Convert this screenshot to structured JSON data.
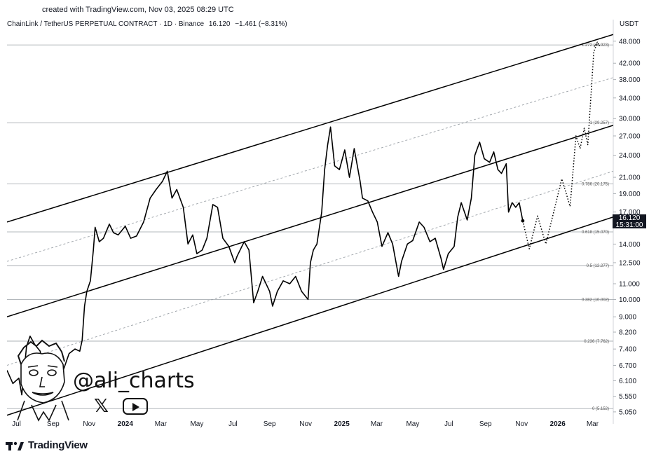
{
  "header": {
    "created": "created with TradingView.com, Nov 03, 2025 08:29 UTC",
    "symbol": "ChainLink / TetherUS PERPETUAL CONTRACT · 1D · Binance",
    "last": "16.120",
    "change": "−1.461 (−8.31%)",
    "currency": "USDT"
  },
  "price_label": {
    "price": "16.120",
    "countdown": "15:31:00"
  },
  "watermark": {
    "handle": "@ali_charts",
    "icons": [
      "x-icon",
      "youtube-icon",
      "avatar-illustration"
    ]
  },
  "brand": {
    "name": "TradingView",
    "icon": "tradingview-logo-icon"
  },
  "chart_data": {
    "type": "line",
    "scale": "log",
    "title": "",
    "y_axis": {
      "ticks": [
        "48.000",
        "42.000",
        "38.000",
        "34.000",
        "30.000",
        "27.000",
        "24.000",
        "21.000",
        "19.000",
        "17.000",
        "14.000",
        "12.500",
        "11.000",
        "10.000",
        "9.000",
        "8.200",
        "7.400",
        "6.700",
        "6.100",
        "5.550",
        "5.050"
      ],
      "tick_values": [
        48,
        42,
        38,
        34,
        30,
        27,
        24,
        21,
        19,
        17,
        14,
        12.5,
        11,
        10,
        9,
        8.2,
        7.4,
        6.7,
        6.1,
        5.55,
        5.05
      ],
      "ylim": [
        4.9,
        52
      ]
    },
    "x_axis": {
      "ticks": [
        "Jul",
        "Sep",
        "Nov",
        "2024",
        "Mar",
        "May",
        "Jul",
        "Sep",
        "Nov",
        "2025",
        "Mar",
        "May",
        "Jul",
        "Sep",
        "Nov",
        "2026",
        "Mar"
      ],
      "bold": [
        false,
        false,
        false,
        true,
        false,
        false,
        false,
        false,
        false,
        true,
        false,
        false,
        false,
        false,
        false,
        true,
        false
      ],
      "tick_dates": [
        "2023-07-01",
        "2023-09-01",
        "2023-11-01",
        "2024-01-01",
        "2024-03-01",
        "2024-05-01",
        "2024-07-01",
        "2024-09-01",
        "2024-11-01",
        "2025-01-01",
        "2025-03-01",
        "2025-05-01",
        "2025-07-01",
        "2025-09-01",
        "2025-11-01",
        "2026-01-01",
        "2026-03-01"
      ],
      "xlim": [
        "2023-06-15",
        "2026-04-05"
      ]
    },
    "fib_levels": [
      {
        "label": "1.272 (46.923)",
        "value": 46.923
      },
      {
        "label": "1 (29.257)",
        "value": 29.257
      },
      {
        "label": "0.786 (20.175)",
        "value": 20.175
      },
      {
        "label": "0.618 (15.070)",
        "value": 15.07
      },
      {
        "label": "0.5 (12.277)",
        "value": 12.277
      },
      {
        "label": "0.382 (10.002)",
        "value": 10.002
      },
      {
        "label": "0.236 (7.762)",
        "value": 7.762
      },
      {
        "label": "0 (5.152)",
        "value": 5.152
      }
    ],
    "channel_lines": [
      {
        "role": "upper",
        "points": [
          [
            "2023-06-15",
            16.0
          ],
          [
            "2026-04-05",
            50.0
          ]
        ]
      },
      {
        "role": "middle",
        "points": [
          [
            "2023-06-15",
            9.0
          ],
          [
            "2026-04-05",
            28.8
          ]
        ]
      },
      {
        "role": "lower",
        "points": [
          [
            "2023-06-15",
            4.95
          ],
          [
            "2026-04-05",
            16.5
          ]
        ]
      }
    ],
    "dashed_lines": [
      {
        "points": [
          [
            "2023-06-15",
            12.6
          ],
          [
            "2026-04-05",
            38.5
          ]
        ]
      },
      {
        "points": [
          [
            "2023-06-15",
            6.7
          ],
          [
            "2026-04-05",
            21.8
          ]
        ]
      }
    ],
    "series": [
      {
        "style": "solid",
        "points": [
          [
            "2023-06-15",
            6.5
          ],
          [
            "2023-06-25",
            6.0
          ],
          [
            "2023-07-05",
            6.2
          ],
          [
            "2023-07-10",
            5.6
          ],
          [
            "2023-07-18",
            7.5
          ],
          [
            "2023-07-24",
            8.0
          ],
          [
            "2023-08-01",
            7.6
          ],
          [
            "2023-08-10",
            7.3
          ],
          [
            "2023-08-18",
            6.3
          ],
          [
            "2023-08-28",
            6.2
          ],
          [
            "2023-09-08",
            6.0
          ],
          [
            "2023-09-18",
            6.5
          ],
          [
            "2023-09-28",
            7.2
          ],
          [
            "2023-10-08",
            7.4
          ],
          [
            "2023-10-16",
            7.3
          ],
          [
            "2023-10-20",
            7.8
          ],
          [
            "2023-10-24",
            9.6
          ],
          [
            "2023-10-28",
            10.5
          ],
          [
            "2023-11-03",
            11.2
          ],
          [
            "2023-11-08",
            13.5
          ],
          [
            "2023-11-11",
            15.5
          ],
          [
            "2023-11-18",
            14.2
          ],
          [
            "2023-11-25",
            14.5
          ],
          [
            "2023-12-05",
            15.8
          ],
          [
            "2023-12-12",
            15.0
          ],
          [
            "2023-12-20",
            14.8
          ],
          [
            "2024-01-01",
            15.6
          ],
          [
            "2024-01-10",
            14.5
          ],
          [
            "2024-01-20",
            14.7
          ],
          [
            "2024-02-01",
            16.0
          ],
          [
            "2024-02-12",
            18.5
          ],
          [
            "2024-02-22",
            19.5
          ],
          [
            "2024-03-04",
            20.5
          ],
          [
            "2024-03-12",
            21.8
          ],
          [
            "2024-03-20",
            18.5
          ],
          [
            "2024-03-28",
            19.5
          ],
          [
            "2024-04-08",
            17.5
          ],
          [
            "2024-04-16",
            14.0
          ],
          [
            "2024-04-24",
            14.8
          ],
          [
            "2024-05-01",
            13.2
          ],
          [
            "2024-05-10",
            13.5
          ],
          [
            "2024-05-18",
            14.5
          ],
          [
            "2024-05-28",
            17.8
          ],
          [
            "2024-06-05",
            17.5
          ],
          [
            "2024-06-14",
            14.5
          ],
          [
            "2024-06-24",
            13.8
          ],
          [
            "2024-07-04",
            12.5
          ],
          [
            "2024-07-08",
            13.0
          ],
          [
            "2024-07-20",
            14.2
          ],
          [
            "2024-07-28",
            13.5
          ],
          [
            "2024-08-05",
            9.8
          ],
          [
            "2024-08-12",
            10.5
          ],
          [
            "2024-08-20",
            11.5
          ],
          [
            "2024-09-01",
            10.5
          ],
          [
            "2024-09-06",
            9.6
          ],
          [
            "2024-09-14",
            10.5
          ],
          [
            "2024-09-24",
            11.2
          ],
          [
            "2024-10-05",
            11.0
          ],
          [
            "2024-10-15",
            11.5
          ],
          [
            "2024-10-25",
            10.5
          ],
          [
            "2024-11-05",
            10.0
          ],
          [
            "2024-11-09",
            12.5
          ],
          [
            "2024-11-14",
            13.5
          ],
          [
            "2024-11-20",
            14.0
          ],
          [
            "2024-11-28",
            17.0
          ],
          [
            "2024-12-03",
            22.0
          ],
          [
            "2024-12-08",
            25.5
          ],
          [
            "2024-12-13",
            28.5
          ],
          [
            "2024-12-20",
            22.5
          ],
          [
            "2024-12-28",
            22.0
          ],
          [
            "2025-01-06",
            24.8
          ],
          [
            "2025-01-14",
            21.0
          ],
          [
            "2025-01-22",
            25.0
          ],
          [
            "2025-02-01",
            20.5
          ],
          [
            "2025-02-05",
            18.5
          ],
          [
            "2025-02-14",
            18.2
          ],
          [
            "2025-02-22",
            17.0
          ],
          [
            "2025-03-02",
            16.0
          ],
          [
            "2025-03-10",
            13.8
          ],
          [
            "2025-03-20",
            15.0
          ],
          [
            "2025-03-28",
            14.0
          ],
          [
            "2025-04-07",
            11.5
          ],
          [
            "2025-04-12",
            12.6
          ],
          [
            "2025-04-22",
            14.0
          ],
          [
            "2025-05-01",
            14.3
          ],
          [
            "2025-05-12",
            16.0
          ],
          [
            "2025-05-20",
            15.5
          ],
          [
            "2025-05-30",
            14.2
          ],
          [
            "2025-06-08",
            14.5
          ],
          [
            "2025-06-18",
            12.8
          ],
          [
            "2025-06-22",
            12.0
          ],
          [
            "2025-06-30",
            13.2
          ],
          [
            "2025-07-10",
            13.8
          ],
          [
            "2025-07-16",
            16.5
          ],
          [
            "2025-07-22",
            18.0
          ],
          [
            "2025-08-01",
            16.2
          ],
          [
            "2025-08-08",
            18.5
          ],
          [
            "2025-08-14",
            24.0
          ],
          [
            "2025-08-22",
            26.0
          ],
          [
            "2025-08-30",
            23.5
          ],
          [
            "2025-09-08",
            23.0
          ],
          [
            "2025-09-15",
            24.5
          ],
          [
            "2025-09-22",
            22.0
          ],
          [
            "2025-09-28",
            21.5
          ],
          [
            "2025-10-06",
            22.8
          ],
          [
            "2025-10-10",
            17.0
          ],
          [
            "2025-10-16",
            18.0
          ],
          [
            "2025-10-22",
            17.5
          ],
          [
            "2025-10-28",
            18.0
          ],
          [
            "2025-11-03",
            16.12
          ]
        ]
      },
      {
        "style": "dotted",
        "points": [
          [
            "2025-11-03",
            16.12
          ],
          [
            "2025-11-14",
            13.6
          ],
          [
            "2025-11-28",
            16.6
          ],
          [
            "2025-12-12",
            14.0
          ],
          [
            "2026-01-08",
            20.8
          ],
          [
            "2026-01-22",
            17.6
          ],
          [
            "2026-02-01",
            27.0
          ],
          [
            "2026-02-08",
            25.0
          ],
          [
            "2026-02-15",
            28.3
          ],
          [
            "2026-02-21",
            25.6
          ],
          [
            "2026-03-03",
            45.0
          ],
          [
            "2026-03-09",
            47.5
          ]
        ]
      }
    ],
    "current": {
      "date": "2025-11-03",
      "value": 16.12
    }
  }
}
